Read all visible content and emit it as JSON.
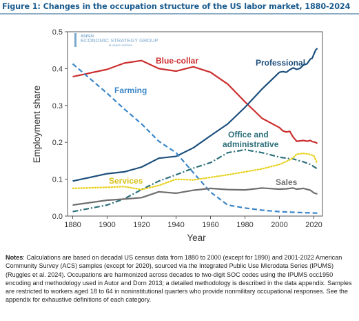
{
  "figure": {
    "title": "Figure 1: Changes in the occupation structure of the US labor market, 1880-2024"
  },
  "logo": {
    "line1": "ASPEN",
    "line2": "ECONOMIC STRATEGY GROUP",
    "line3": "⊕ aspen institute"
  },
  "notes": {
    "label": "Notes",
    "text": ": Calculations are based on decadal US census data from 1880 to 2000 (except for 1890) and 2001-2022 American Community Survey (ACS) samples (except for 2020), sourced via the Integrated Public Use Microdata Series (IPUMS) (Ruggles et al. 2024). Occupations are harmonized across decades to two-digit SOC codes using the IPUMS occ1950 encoding and methodology used in Autor and Dorn 2013; a detailed methodology is described in the data appendix. Samples are restricted to workers aged 18 to 64 in noninstitutional quarters who provide nonmilitary occupational responses. See the appendix for exhaustive definitions of each category."
  },
  "chart_data": {
    "type": "line",
    "xlabel": "Year",
    "ylabel": "Employment share",
    "xlim": [
      1877,
      2025
    ],
    "ylim": [
      0,
      0.5
    ],
    "xticks": [
      1880,
      1900,
      1920,
      1940,
      1960,
      1980,
      2000,
      2020
    ],
    "yticks": [
      0.0,
      0.1,
      0.2,
      0.3,
      0.4,
      0.5
    ],
    "ytick_labels": [
      "0.0",
      "0.1",
      "0.2",
      "0.3",
      "0.4",
      "0.5"
    ],
    "grid": false,
    "legend": "inline labels",
    "series": [
      {
        "name": "Blue-collar",
        "color": "#cc2e2e",
        "style": "solid",
        "points": [
          [
            1880,
            0.378
          ],
          [
            1900,
            0.398
          ],
          [
            1910,
            0.415
          ],
          [
            1920,
            0.422
          ],
          [
            1930,
            0.4
          ],
          [
            1940,
            0.393
          ],
          [
            1950,
            0.405
          ],
          [
            1960,
            0.39
          ],
          [
            1970,
            0.358
          ],
          [
            1980,
            0.31
          ],
          [
            1990,
            0.265
          ],
          [
            2000,
            0.24
          ],
          [
            2002,
            0.231
          ],
          [
            2004,
            0.228
          ],
          [
            2006,
            0.23
          ],
          [
            2008,
            0.214
          ],
          [
            2010,
            0.203
          ],
          [
            2012,
            0.204
          ],
          [
            2014,
            0.205
          ],
          [
            2016,
            0.203
          ],
          [
            2018,
            0.205
          ],
          [
            2019,
            0.202
          ],
          [
            2021,
            0.2
          ],
          [
            2022,
            0.197
          ]
        ]
      },
      {
        "name": "Professional",
        "color": "#1d4f7c",
        "style": "solid",
        "points": [
          [
            1880,
            0.095
          ],
          [
            1900,
            0.115
          ],
          [
            1910,
            0.12
          ],
          [
            1920,
            0.133
          ],
          [
            1930,
            0.157
          ],
          [
            1940,
            0.162
          ],
          [
            1950,
            0.185
          ],
          [
            1960,
            0.218
          ],
          [
            1970,
            0.25
          ],
          [
            1980,
            0.295
          ],
          [
            1990,
            0.345
          ],
          [
            2000,
            0.39
          ],
          [
            2002,
            0.392
          ],
          [
            2004,
            0.39
          ],
          [
            2006,
            0.397
          ],
          [
            2008,
            0.402
          ],
          [
            2010,
            0.398
          ],
          [
            2012,
            0.401
          ],
          [
            2014,
            0.41
          ],
          [
            2016,
            0.413
          ],
          [
            2018,
            0.426
          ],
          [
            2019,
            0.428
          ],
          [
            2021,
            0.45
          ],
          [
            2022,
            0.455
          ]
        ]
      },
      {
        "name": "Farming",
        "color": "#3a86c8",
        "style": "dashed",
        "points": [
          [
            1880,
            0.413
          ],
          [
            1900,
            0.333
          ],
          [
            1910,
            0.29
          ],
          [
            1920,
            0.25
          ],
          [
            1930,
            0.203
          ],
          [
            1940,
            0.172
          ],
          [
            1950,
            0.118
          ],
          [
            1960,
            0.065
          ],
          [
            1970,
            0.03
          ],
          [
            1980,
            0.022
          ],
          [
            1990,
            0.016
          ],
          [
            2000,
            0.012
          ],
          [
            2010,
            0.01
          ],
          [
            2022,
            0.008
          ]
        ]
      },
      {
        "name": "Office and administrative",
        "color": "#2d6f7a",
        "style": "dashdot",
        "points": [
          [
            1880,
            0.012
          ],
          [
            1900,
            0.03
          ],
          [
            1910,
            0.047
          ],
          [
            1920,
            0.072
          ],
          [
            1930,
            0.095
          ],
          [
            1940,
            0.112
          ],
          [
            1950,
            0.13
          ],
          [
            1960,
            0.145
          ],
          [
            1970,
            0.172
          ],
          [
            1980,
            0.18
          ],
          [
            1990,
            0.172
          ],
          [
            2000,
            0.16
          ],
          [
            2004,
            0.157
          ],
          [
            2008,
            0.155
          ],
          [
            2010,
            0.152
          ],
          [
            2014,
            0.147
          ],
          [
            2018,
            0.14
          ],
          [
            2022,
            0.128
          ]
        ]
      },
      {
        "name": "Services",
        "color": "#e7d11a",
        "style": "dotted",
        "points": [
          [
            1880,
            0.075
          ],
          [
            1900,
            0.078
          ],
          [
            1910,
            0.08
          ],
          [
            1920,
            0.072
          ],
          [
            1930,
            0.083
          ],
          [
            1940,
            0.1
          ],
          [
            1950,
            0.098
          ],
          [
            1960,
            0.105
          ],
          [
            1970,
            0.112
          ],
          [
            1980,
            0.12
          ],
          [
            1990,
            0.128
          ],
          [
            2000,
            0.14
          ],
          [
            2004,
            0.148
          ],
          [
            2008,
            0.158
          ],
          [
            2010,
            0.168
          ],
          [
            2014,
            0.17
          ],
          [
            2018,
            0.167
          ],
          [
            2020,
            0.163
          ],
          [
            2022,
            0.143
          ]
        ]
      },
      {
        "name": "Sales",
        "color": "#6e6e6e",
        "style": "solid",
        "points": [
          [
            1880,
            0.03
          ],
          [
            1900,
            0.043
          ],
          [
            1910,
            0.046
          ],
          [
            1920,
            0.05
          ],
          [
            1930,
            0.066
          ],
          [
            1940,
            0.062
          ],
          [
            1950,
            0.07
          ],
          [
            1960,
            0.075
          ],
          [
            1970,
            0.072
          ],
          [
            1980,
            0.071
          ],
          [
            1990,
            0.076
          ],
          [
            2000,
            0.073
          ],
          [
            2004,
            0.074
          ],
          [
            2008,
            0.076
          ],
          [
            2010,
            0.073
          ],
          [
            2014,
            0.075
          ],
          [
            2018,
            0.07
          ],
          [
            2020,
            0.063
          ],
          [
            2022,
            0.06
          ]
        ]
      }
    ]
  }
}
